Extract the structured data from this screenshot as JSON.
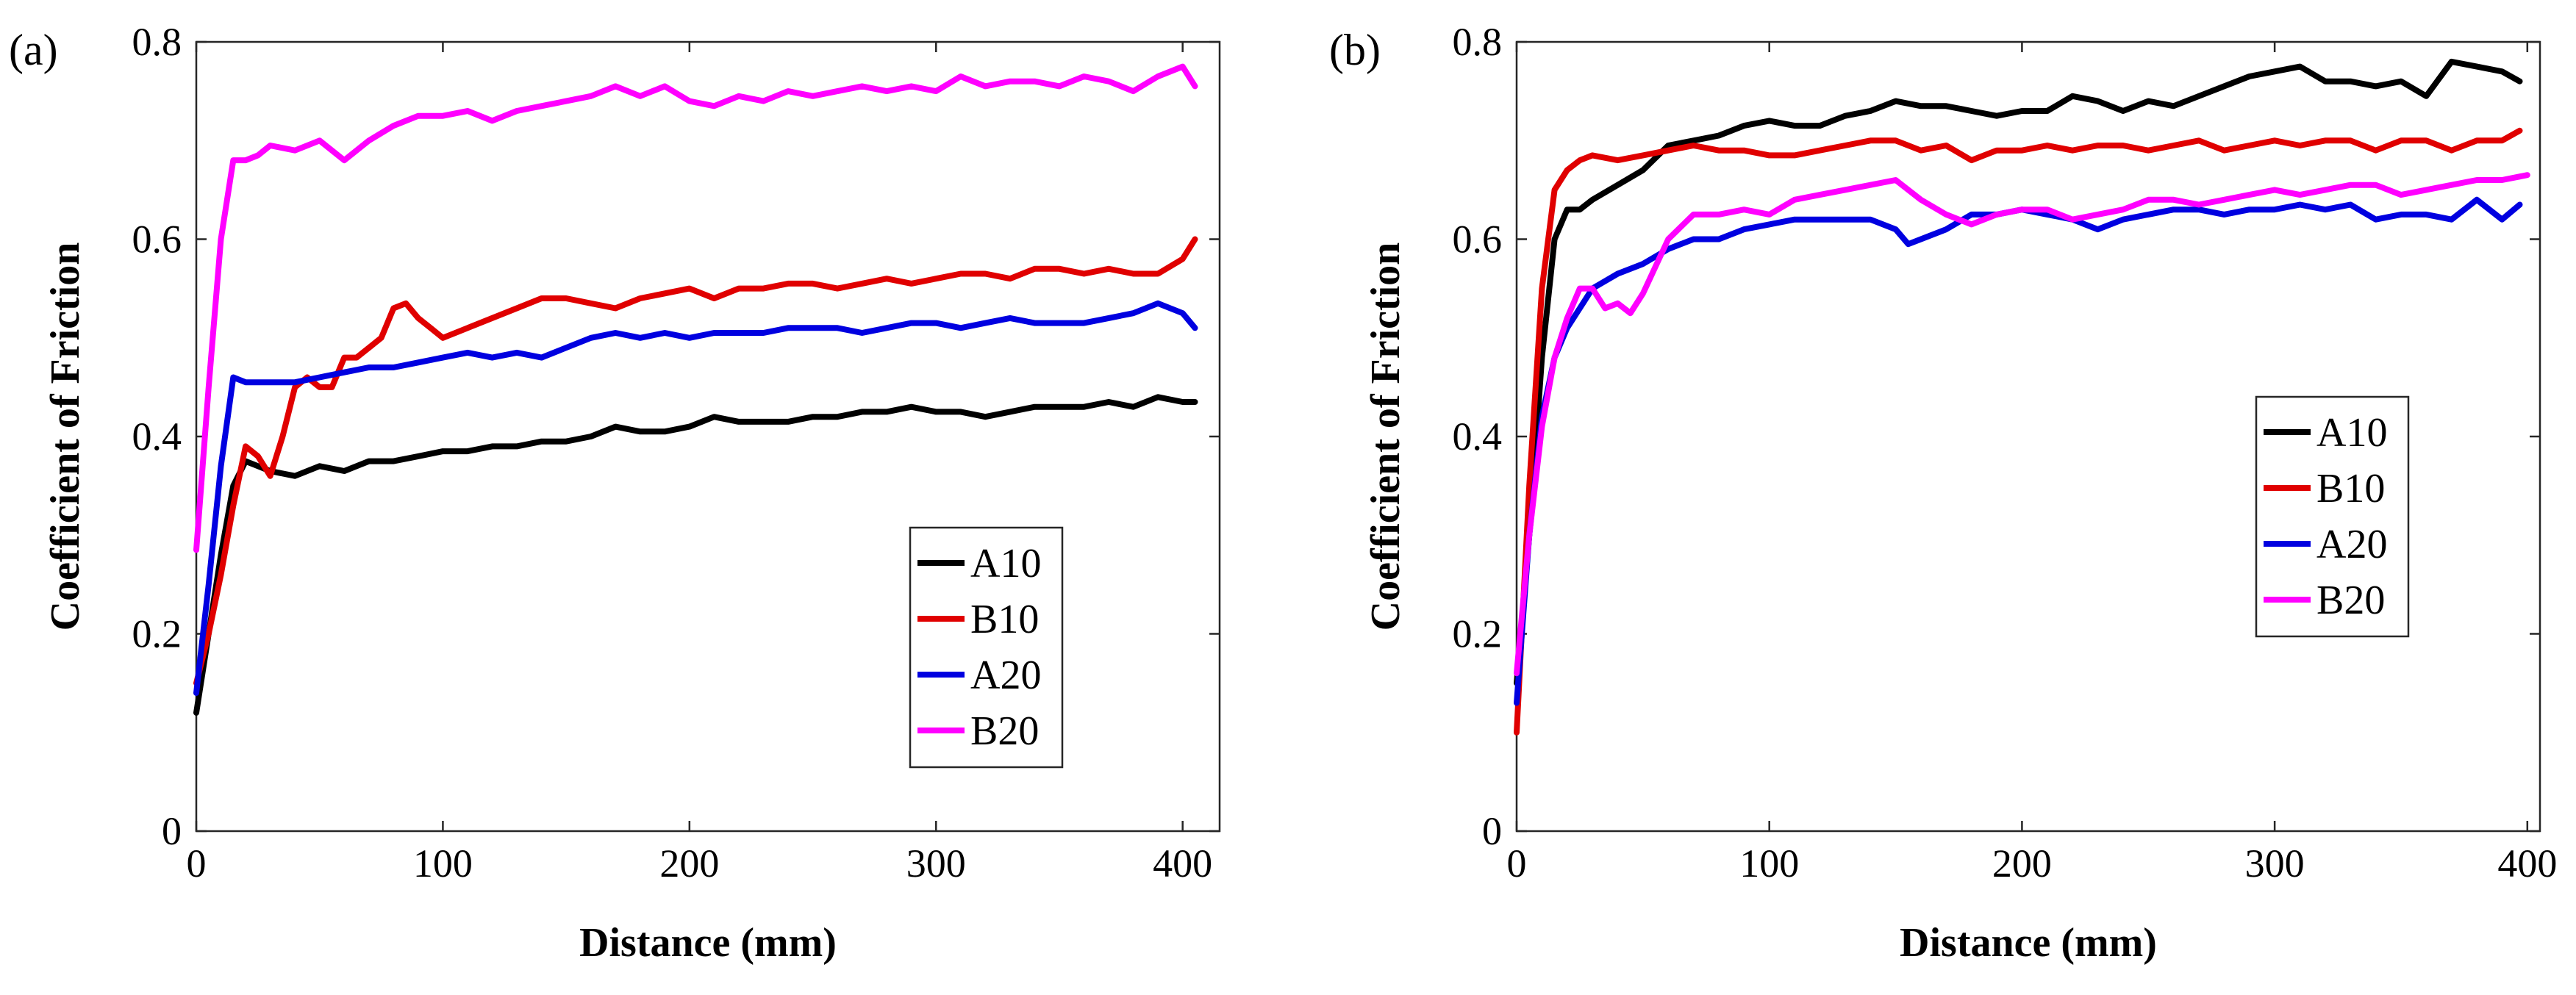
{
  "chart_data": [
    {
      "panel_label": "(a)",
      "type": "line",
      "title": "",
      "xlabel": "Distance (mm)",
      "ylabel": "Coefficient of Friction",
      "xlim": [
        0,
        415
      ],
      "ylim": [
        0,
        0.8
      ],
      "xticks": [
        "0",
        "100",
        "200",
        "300",
        "400"
      ],
      "yticks": [
        "0",
        "0.2",
        "0.4",
        "0.6",
        "0.8"
      ],
      "legend_position": "lower-right",
      "grid": false,
      "series": [
        {
          "name": "A10",
          "color": "#000000",
          "x": [
            0,
            5,
            10,
            15,
            20,
            25,
            30,
            40,
            50,
            60,
            70,
            80,
            90,
            100,
            110,
            120,
            130,
            140,
            150,
            160,
            170,
            180,
            190,
            200,
            210,
            220,
            230,
            240,
            250,
            260,
            270,
            280,
            290,
            300,
            310,
            320,
            330,
            340,
            350,
            360,
            370,
            380,
            390,
            400,
            405
          ],
          "y": [
            0.12,
            0.2,
            0.28,
            0.35,
            0.375,
            0.37,
            0.365,
            0.36,
            0.37,
            0.365,
            0.375,
            0.375,
            0.38,
            0.385,
            0.385,
            0.39,
            0.39,
            0.395,
            0.395,
            0.4,
            0.41,
            0.405,
            0.405,
            0.41,
            0.42,
            0.415,
            0.415,
            0.415,
            0.42,
            0.42,
            0.425,
            0.425,
            0.43,
            0.425,
            0.425,
            0.42,
            0.425,
            0.43,
            0.43,
            0.43,
            0.435,
            0.43,
            0.44,
            0.435,
            0.435
          ]
        },
        {
          "name": "B10",
          "color": "#e00000",
          "x": [
            0,
            5,
            10,
            15,
            20,
            25,
            30,
            35,
            40,
            45,
            50,
            55,
            60,
            65,
            70,
            75,
            80,
            85,
            90,
            95,
            100,
            110,
            120,
            130,
            140,
            150,
            160,
            170,
            180,
            190,
            200,
            210,
            220,
            230,
            240,
            250,
            260,
            270,
            280,
            290,
            300,
            310,
            320,
            330,
            340,
            350,
            360,
            370,
            380,
            390,
            400,
            405
          ],
          "y": [
            0.15,
            0.2,
            0.26,
            0.33,
            0.39,
            0.38,
            0.36,
            0.4,
            0.45,
            0.46,
            0.45,
            0.45,
            0.48,
            0.48,
            0.49,
            0.5,
            0.53,
            0.535,
            0.52,
            0.51,
            0.5,
            0.51,
            0.52,
            0.53,
            0.54,
            0.54,
            0.535,
            0.53,
            0.54,
            0.545,
            0.55,
            0.54,
            0.55,
            0.55,
            0.555,
            0.555,
            0.55,
            0.555,
            0.56,
            0.555,
            0.56,
            0.565,
            0.565,
            0.56,
            0.57,
            0.57,
            0.565,
            0.57,
            0.565,
            0.565,
            0.58,
            0.6
          ]
        },
        {
          "name": "A20",
          "color": "#0000e0",
          "x": [
            0,
            5,
            10,
            15,
            20,
            30,
            40,
            50,
            60,
            70,
            80,
            90,
            100,
            110,
            120,
            130,
            140,
            150,
            160,
            170,
            180,
            190,
            200,
            210,
            220,
            230,
            240,
            250,
            260,
            270,
            280,
            290,
            300,
            310,
            320,
            330,
            340,
            350,
            360,
            370,
            380,
            390,
            400,
            405
          ],
          "y": [
            0.14,
            0.25,
            0.37,
            0.46,
            0.455,
            0.455,
            0.455,
            0.46,
            0.465,
            0.47,
            0.47,
            0.475,
            0.48,
            0.485,
            0.48,
            0.485,
            0.48,
            0.49,
            0.5,
            0.505,
            0.5,
            0.505,
            0.5,
            0.505,
            0.505,
            0.505,
            0.51,
            0.51,
            0.51,
            0.505,
            0.51,
            0.515,
            0.515,
            0.51,
            0.515,
            0.52,
            0.515,
            0.515,
            0.515,
            0.52,
            0.525,
            0.535,
            0.525,
            0.51
          ]
        },
        {
          "name": "B20",
          "color": "#ff00ff",
          "x": [
            0,
            5,
            10,
            15,
            20,
            25,
            30,
            40,
            50,
            60,
            70,
            80,
            90,
            100,
            110,
            120,
            130,
            140,
            150,
            160,
            170,
            180,
            190,
            200,
            210,
            220,
            230,
            240,
            250,
            260,
            270,
            280,
            290,
            300,
            310,
            320,
            330,
            340,
            350,
            360,
            370,
            380,
            390,
            400,
            405
          ],
          "y": [
            0.285,
            0.45,
            0.6,
            0.68,
            0.68,
            0.685,
            0.695,
            0.69,
            0.7,
            0.68,
            0.7,
            0.715,
            0.725,
            0.725,
            0.73,
            0.72,
            0.73,
            0.735,
            0.74,
            0.745,
            0.755,
            0.745,
            0.755,
            0.74,
            0.735,
            0.745,
            0.74,
            0.75,
            0.745,
            0.75,
            0.755,
            0.75,
            0.755,
            0.75,
            0.765,
            0.755,
            0.76,
            0.76,
            0.755,
            0.765,
            0.76,
            0.75,
            0.765,
            0.775,
            0.755
          ]
        }
      ]
    },
    {
      "panel_label": "(b)",
      "type": "line",
      "title": "",
      "xlabel": "Distance (mm)",
      "ylabel": "Coefficient of Friction",
      "xlim": [
        0,
        405
      ],
      "ylim": [
        0,
        0.8
      ],
      "xticks": [
        "0",
        "100",
        "200",
        "300",
        "400"
      ],
      "yticks": [
        "0",
        "0.2",
        "0.4",
        "0.6",
        "0.8"
      ],
      "legend_position": "center-right",
      "grid": false,
      "series": [
        {
          "name": "A10",
          "color": "#000000",
          "x": [
            0,
            5,
            10,
            15,
            20,
            25,
            30,
            40,
            50,
            60,
            70,
            80,
            90,
            100,
            110,
            120,
            130,
            140,
            150,
            160,
            170,
            180,
            190,
            200,
            210,
            220,
            230,
            240,
            250,
            260,
            270,
            280,
            290,
            300,
            310,
            320,
            330,
            340,
            350,
            360,
            370,
            380,
            390,
            397
          ],
          "y": [
            0.15,
            0.3,
            0.48,
            0.6,
            0.63,
            0.63,
            0.64,
            0.655,
            0.67,
            0.695,
            0.7,
            0.705,
            0.715,
            0.72,
            0.715,
            0.715,
            0.725,
            0.73,
            0.74,
            0.735,
            0.735,
            0.73,
            0.725,
            0.73,
            0.73,
            0.745,
            0.74,
            0.73,
            0.74,
            0.735,
            0.745,
            0.755,
            0.765,
            0.77,
            0.775,
            0.76,
            0.76,
            0.755,
            0.76,
            0.745,
            0.78,
            0.775,
            0.77,
            0.76
          ]
        },
        {
          "name": "B10",
          "color": "#e00000",
          "x": [
            0,
            5,
            10,
            15,
            20,
            25,
            30,
            40,
            50,
            60,
            70,
            80,
            90,
            100,
            110,
            120,
            130,
            140,
            150,
            160,
            170,
            180,
            190,
            200,
            210,
            220,
            230,
            240,
            250,
            260,
            270,
            280,
            290,
            300,
            310,
            320,
            330,
            340,
            350,
            360,
            370,
            380,
            390,
            397
          ],
          "y": [
            0.1,
            0.35,
            0.55,
            0.65,
            0.67,
            0.68,
            0.685,
            0.68,
            0.685,
            0.69,
            0.695,
            0.69,
            0.69,
            0.685,
            0.685,
            0.69,
            0.695,
            0.7,
            0.7,
            0.69,
            0.695,
            0.68,
            0.69,
            0.69,
            0.695,
            0.69,
            0.695,
            0.695,
            0.69,
            0.695,
            0.7,
            0.69,
            0.695,
            0.7,
            0.695,
            0.7,
            0.7,
            0.69,
            0.7,
            0.7,
            0.69,
            0.7,
            0.7,
            0.71
          ]
        },
        {
          "name": "A20",
          "color": "#0000e0",
          "x": [
            0,
            5,
            10,
            15,
            20,
            25,
            30,
            40,
            50,
            60,
            70,
            80,
            90,
            100,
            110,
            120,
            130,
            140,
            150,
            155,
            160,
            170,
            180,
            190,
            200,
            210,
            220,
            230,
            240,
            250,
            260,
            270,
            280,
            290,
            300,
            310,
            320,
            330,
            340,
            350,
            360,
            370,
            380,
            390,
            397
          ],
          "y": [
            0.13,
            0.3,
            0.42,
            0.48,
            0.51,
            0.53,
            0.55,
            0.565,
            0.575,
            0.59,
            0.6,
            0.6,
            0.61,
            0.615,
            0.62,
            0.62,
            0.62,
            0.62,
            0.61,
            0.595,
            0.6,
            0.61,
            0.625,
            0.625,
            0.63,
            0.625,
            0.62,
            0.61,
            0.62,
            0.625,
            0.63,
            0.63,
            0.625,
            0.63,
            0.63,
            0.635,
            0.63,
            0.635,
            0.62,
            0.625,
            0.625,
            0.62,
            0.64,
            0.62,
            0.635
          ]
        },
        {
          "name": "B20",
          "color": "#ff00ff",
          "x": [
            0,
            5,
            10,
            15,
            20,
            25,
            30,
            35,
            40,
            45,
            50,
            60,
            70,
            80,
            90,
            100,
            110,
            120,
            130,
            140,
            150,
            160,
            170,
            180,
            190,
            200,
            210,
            220,
            230,
            240,
            250,
            260,
            270,
            280,
            290,
            300,
            310,
            320,
            330,
            340,
            350,
            360,
            370,
            380,
            390,
            400
          ],
          "y": [
            0.16,
            0.3,
            0.41,
            0.48,
            0.52,
            0.55,
            0.55,
            0.53,
            0.535,
            0.525,
            0.545,
            0.6,
            0.625,
            0.625,
            0.63,
            0.625,
            0.64,
            0.645,
            0.65,
            0.655,
            0.66,
            0.64,
            0.625,
            0.615,
            0.625,
            0.63,
            0.63,
            0.62,
            0.625,
            0.63,
            0.64,
            0.64,
            0.635,
            0.64,
            0.645,
            0.65,
            0.645,
            0.65,
            0.655,
            0.655,
            0.645,
            0.65,
            0.655,
            0.66,
            0.66,
            0.665
          ]
        }
      ]
    }
  ]
}
